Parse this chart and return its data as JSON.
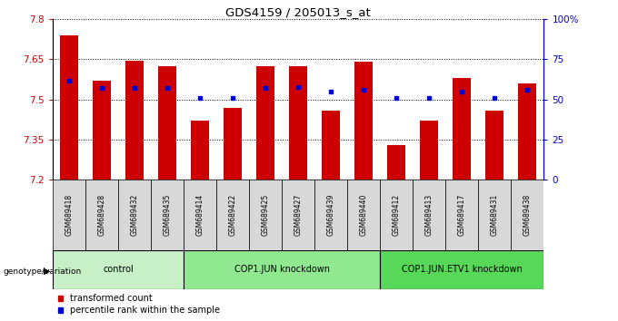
{
  "title": "GDS4159 / 205013_s_at",
  "samples": [
    "GSM689418",
    "GSM689428",
    "GSM689432",
    "GSM689435",
    "GSM689414",
    "GSM689422",
    "GSM689425",
    "GSM689427",
    "GSM689439",
    "GSM689440",
    "GSM689412",
    "GSM689413",
    "GSM689417",
    "GSM689431",
    "GSM689438"
  ],
  "transformed_counts": [
    7.74,
    7.57,
    7.645,
    7.625,
    7.42,
    7.47,
    7.625,
    7.625,
    7.46,
    7.64,
    7.33,
    7.42,
    7.58,
    7.46,
    7.56
  ],
  "percentile_ranks": [
    62,
    57,
    57,
    57,
    51,
    51,
    57,
    58,
    55,
    56,
    51,
    51,
    55,
    51,
    56
  ],
  "groups": [
    {
      "label": "control",
      "start": 0,
      "end": 4,
      "color": "#c8f0c8"
    },
    {
      "label": "COP1.JUN knockdown",
      "start": 4,
      "end": 10,
      "color": "#90e890"
    },
    {
      "label": "COP1.JUN.ETV1 knockdown",
      "start": 10,
      "end": 15,
      "color": "#58d858"
    }
  ],
  "ymin": 7.2,
  "ymax": 7.8,
  "yticks": [
    7.2,
    7.35,
    7.5,
    7.65,
    7.8
  ],
  "ytick_labels": [
    "7.2",
    "7.35",
    "7.5",
    "7.65",
    "7.8"
  ],
  "right_yticks": [
    0,
    25,
    50,
    75,
    100
  ],
  "right_ytick_labels": [
    "0",
    "25",
    "50",
    "75",
    "100%"
  ],
  "bar_color": "#cc0000",
  "marker_color": "#0000cc",
  "bar_width": 0.55,
  "grid_color": "#000000",
  "bg_color": "#ffffff",
  "legend_items": [
    {
      "label": "transformed count",
      "color": "#cc0000"
    },
    {
      "label": "percentile rank within the sample",
      "color": "#0000cc"
    }
  ],
  "genotype_label": "genotype/variation"
}
